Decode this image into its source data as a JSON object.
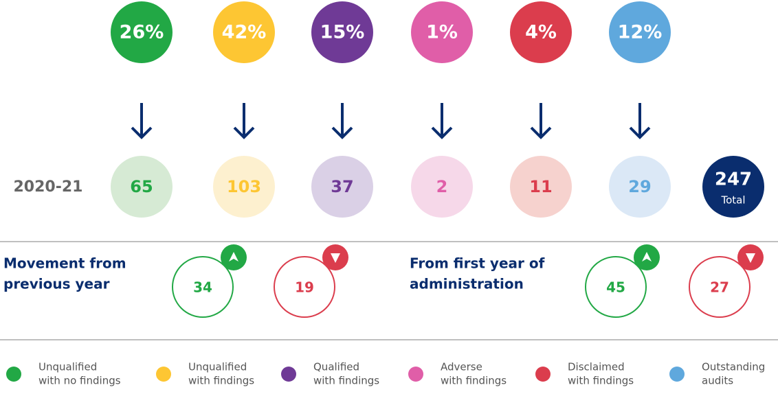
{
  "outcomes": [
    {
      "color": "#22a845",
      "pale": "#d6ead4",
      "percent": "26%",
      "count": "65",
      "legend": [
        "Unqualified",
        "with no findings"
      ]
    },
    {
      "color": "#fdc633",
      "pale": "#fdf0cf",
      "percent": "42%",
      "count": "103",
      "legend": [
        "Unqualified",
        "with findings"
      ]
    },
    {
      "color": "#6f3a96",
      "pale": "#dad0e6",
      "percent": "15%",
      "count": "37",
      "legend": [
        "Qualified",
        "with findings"
      ]
    },
    {
      "color": "#e05ea8",
      "pale": "#f6d8e9",
      "percent": "1%",
      "count": "2",
      "legend": [
        "Adverse",
        "with findings"
      ]
    },
    {
      "color": "#db3d4d",
      "pale": "#f6d2ce",
      "percent": "4%",
      "count": "11",
      "legend": [
        "Disclaimed",
        "with findings"
      ]
    },
    {
      "color": "#5fa8dd",
      "pale": "#dbe8f6",
      "percent": "12%",
      "count": "29",
      "legend": [
        "Outstanding",
        "audits"
      ]
    }
  ],
  "year": "2020-21",
  "total": {
    "value": "247",
    "label": "Total"
  },
  "movements": [
    {
      "title": [
        "Movement from",
        "previous year"
      ],
      "up": "34",
      "down": "19"
    },
    {
      "title": [
        "From first year of",
        "administration"
      ],
      "up": "45",
      "down": "27"
    }
  ]
}
